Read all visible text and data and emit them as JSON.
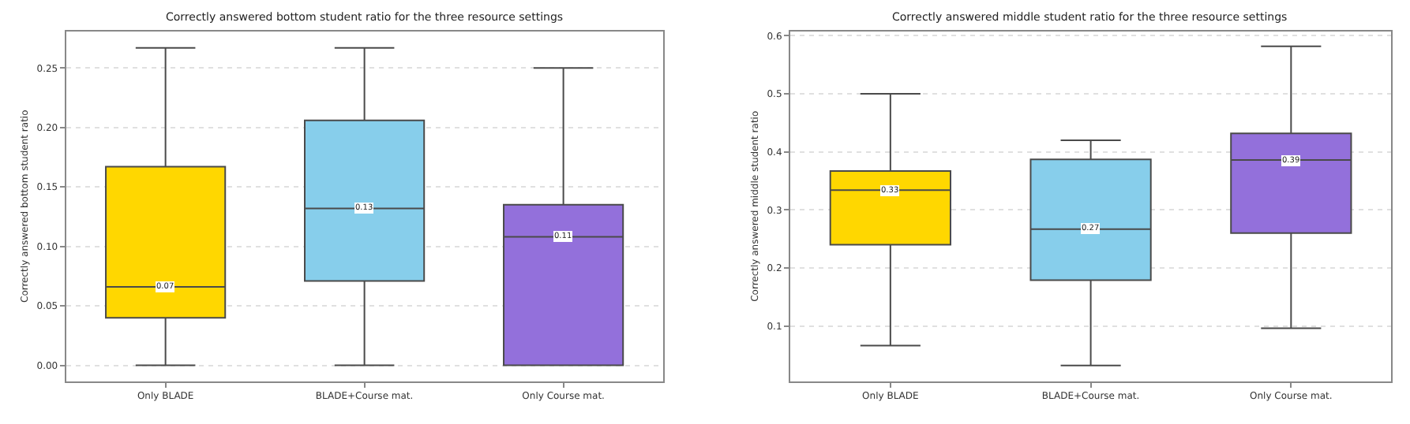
{
  "chart_data": [
    {
      "type": "box",
      "title": "Correctly answered bottom student ratio for the three resource settings",
      "ylabel": "Correctly answered bottom student ratio",
      "categories": [
        "Only BLADE",
        "BLADE+Course mat.",
        "Only Course mat."
      ],
      "colors": [
        "#ffd700",
        "#87ceeb",
        "#9370db"
      ],
      "boxes": [
        {
          "low": 0,
          "q1": 0.04,
          "median": 0.066,
          "q3": 0.167,
          "high": 0.267
        },
        {
          "low": 0,
          "q1": 0.071,
          "median": 0.132,
          "q3": 0.206,
          "high": 0.267
        },
        {
          "low": 0,
          "q1": 0,
          "median": 0.108,
          "q3": 0.135,
          "high": 0.25
        }
      ],
      "annotations": [
        {
          "text": "0.07",
          "x": "Only BLADE",
          "y": 0.066
        },
        {
          "text": "0.13",
          "x": "BLADE+Course mat.",
          "y": 0.132
        },
        {
          "text": "0.11",
          "x": "Only Course mat.",
          "y": 0.108
        }
      ],
      "ylim": [
        -0.0135,
        0.281
      ],
      "yticks": [
        {
          "value": 0,
          "label": "0.00"
        },
        {
          "value": 0.05,
          "label": "0.05"
        },
        {
          "value": 0.1,
          "label": "0.10"
        },
        {
          "value": 0.15,
          "label": "0.15"
        },
        {
          "value": 0.2,
          "label": "0.20"
        },
        {
          "value": 0.25,
          "label": "0.25"
        }
      ],
      "grid": "y"
    },
    {
      "type": "box",
      "title": "Correctly answered middle student ratio for the three resource settings",
      "ylabel": "Correctly answered middle student ratio",
      "categories": [
        "Only BLADE",
        "BLADE+Course mat.",
        "Only Course mat."
      ],
      "colors": [
        "#ffd700",
        "#87ceeb",
        "#9370db"
      ],
      "boxes": [
        {
          "low": 0.066,
          "q1": 0.24,
          "median": 0.334,
          "q3": 0.367,
          "high": 0.5
        },
        {
          "low": 0.032,
          "q1": 0.179,
          "median": 0.267,
          "q3": 0.387,
          "high": 0.42
        },
        {
          "low": 0.096,
          "q1": 0.26,
          "median": 0.386,
          "q3": 0.432,
          "high": 0.582
        }
      ],
      "annotations": [
        {
          "text": "0.33",
          "x": "Only BLADE",
          "y": 0.334
        },
        {
          "text": "0.27",
          "x": "BLADE+Course mat.",
          "y": 0.267
        },
        {
          "text": "0.39",
          "x": "Only Course mat.",
          "y": 0.386
        }
      ],
      "ylim": [
        0.0045,
        0.608
      ],
      "yticks": [
        0.1,
        0.2,
        0.3,
        0.4,
        0.5,
        0.6
      ],
      "grid": "y"
    }
  ]
}
